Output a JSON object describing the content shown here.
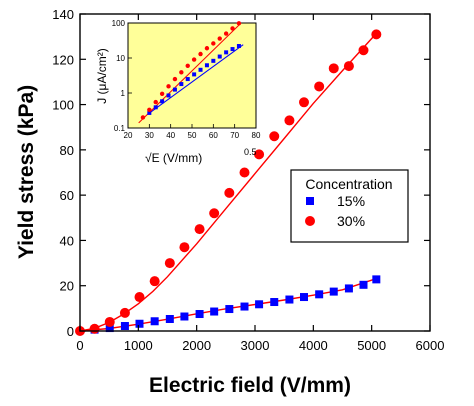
{
  "chart_data": [
    {
      "type": "scatter",
      "title": "",
      "xlabel": "Electric field (V/mm)",
      "ylabel": "Yield stress (kPa)",
      "xlim": [
        0,
        6000
      ],
      "ylim": [
        0,
        140
      ],
      "x_ticks": [
        "0",
        "1000",
        "2000",
        "3000",
        "4000",
        "5000",
        "6000"
      ],
      "y_ticks": [
        "0",
        "20",
        "40",
        "60",
        "80",
        "100",
        "120",
        "140"
      ],
      "grid": false,
      "legend": {
        "title": "Concentration",
        "position": "center-right",
        "entries": [
          "15%",
          "30%"
        ]
      },
      "series": [
        {
          "name": "15%",
          "marker": "square",
          "color": "#0000ff",
          "x": [
            250,
            510,
            770,
            1020,
            1280,
            1540,
            1790,
            2050,
            2300,
            2560,
            2820,
            3070,
            3330,
            3590,
            3840,
            4100,
            4350,
            4610,
            4860,
            5080
          ],
          "y": [
            0.6,
            1.3,
            2.2,
            3.2,
            4.3,
            5.3,
            6.4,
            7.5,
            8.6,
            9.7,
            10.8,
            11.8,
            12.8,
            13.9,
            15.0,
            16.2,
            17.4,
            18.8,
            20.4,
            22.8
          ]
        },
        {
          "name": "30%",
          "marker": "circle",
          "color": "#ff0000",
          "x": [
            0,
            250,
            510,
            770,
            1020,
            1280,
            1540,
            1790,
            2050,
            2300,
            2560,
            2820,
            3070,
            3330,
            3590,
            3840,
            4100,
            4350,
            4610,
            4860,
            5080
          ],
          "y": [
            0,
            1,
            4,
            8,
            15,
            22,
            30,
            37,
            45,
            52,
            61,
            70,
            78,
            86,
            93,
            101,
            108,
            116,
            117,
            124,
            131
          ]
        }
      ],
      "fit_lines": [
        {
          "series": "15%",
          "color": "#ff0000",
          "x": [
            0,
            500,
            1000,
            1500,
            2000,
            2500,
            3000,
            3500,
            4000,
            4500,
            5100
          ],
          "y": [
            0,
            1.1,
            3.0,
            5.2,
            7.6,
            9.8,
            11.7,
            13.7,
            15.8,
            18.2,
            23.3
          ]
        },
        {
          "series": "30%",
          "color": "#ff0000",
          "x": [
            0,
            250,
            500,
            750,
            1000,
            1250,
            1500,
            2000,
            2500,
            3000,
            3500,
            4000,
            4500,
            5100
          ],
          "y": [
            0,
            1.2,
            3.8,
            7.5,
            12,
            17.5,
            24,
            38.5,
            54,
            69.5,
            85,
            100.5,
            115,
            132
          ]
        }
      ]
    },
    {
      "type": "scatter",
      "title": "",
      "background": "#ffff99",
      "xlabel": "√E  (V/mm)",
      "xlabel_sup": "0.5",
      "ylabel": "J (μA/cm²)",
      "xlim": [
        20,
        80
      ],
      "ylim": [
        0.1,
        100
      ],
      "y_scale": "log",
      "x_ticks": [
        "20",
        "30",
        "40",
        "50",
        "60",
        "70",
        "80"
      ],
      "y_ticks": [
        "0.1",
        "1",
        "10",
        "100"
      ],
      "series": [
        {
          "name": "15%",
          "marker": "square",
          "color": "#0000ff",
          "x": [
            30,
            33,
            36,
            39,
            42,
            45,
            48,
            51,
            54,
            57,
            60,
            63,
            66,
            69,
            72
          ],
          "y": [
            0.27,
            0.39,
            0.58,
            0.85,
            1.25,
            1.8,
            2.5,
            3.4,
            4.6,
            6.2,
            8.3,
            11,
            14.5,
            18,
            22
          ]
        },
        {
          "name": "30%",
          "marker": "circle",
          "color": "#ff0000",
          "x": [
            27,
            30,
            33,
            36,
            39,
            42,
            45,
            48,
            51,
            54,
            57,
            60,
            63,
            66,
            69,
            72
          ],
          "y": [
            0.2,
            0.33,
            0.55,
            0.95,
            1.55,
            2.5,
            3.9,
            6,
            9,
            13,
            19,
            26,
            36,
            50,
            70,
            98
          ]
        }
      ],
      "fit_lines": [
        {
          "series": "15%",
          "color": "#0000ff",
          "x": [
            29,
            74
          ],
          "y": [
            0.24,
            24
          ]
        },
        {
          "series": "30%",
          "color": "#ff0000",
          "x": [
            25,
            73
          ],
          "y": [
            0.14,
            100
          ]
        }
      ]
    }
  ]
}
